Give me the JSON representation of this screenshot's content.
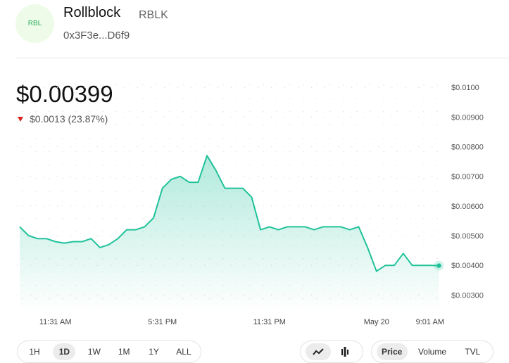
{
  "header": {
    "logo": "RBL",
    "name": "Rollblock",
    "symbol": "RBLK",
    "address": "0x3F3e...D6f9"
  },
  "price": "$0.00399",
  "change": "$0.0013 (23.87%)",
  "chart_data": {
    "type": "area",
    "categories": [
      null,
      null,
      null,
      null,
      "11:31 AM",
      null,
      null,
      null,
      null,
      null,
      null,
      null,
      null,
      null,
      null,
      null,
      "5:31 PM",
      null,
      null,
      null,
      null,
      null,
      null,
      null,
      null,
      null,
      null,
      null,
      "11:31 PM",
      null,
      null,
      null,
      null,
      null,
      null,
      null,
      null,
      null,
      null,
      null,
      "May 20",
      null,
      null,
      null,
      null,
      null,
      "9:01 AM",
      null
    ],
    "values": [
      0.0053,
      0.005,
      0.0049,
      0.0049,
      0.0048,
      0.00475,
      0.0048,
      0.0048,
      0.0049,
      0.0046,
      0.0047,
      0.0049,
      0.0052,
      0.0052,
      0.0053,
      0.0056,
      0.0066,
      0.0069,
      0.007,
      0.0068,
      0.0068,
      0.0077,
      0.0072,
      0.0066,
      0.0066,
      0.0066,
      0.0063,
      0.0052,
      0.0053,
      0.0052,
      0.0053,
      0.0053,
      0.0053,
      0.0052,
      0.0053,
      0.0053,
      0.0053,
      0.0052,
      0.0053,
      0.0046,
      0.0038,
      0.004,
      0.004,
      0.0044,
      0.004,
      0.004,
      0.004,
      0.00399
    ],
    "color": "#20c29a",
    "ylim": [
      0.0027,
      0.0101
    ],
    "yticks": [
      {
        "value": 0.003,
        "label": "$0.00300"
      },
      {
        "value": 0.004,
        "label": "$0.00400"
      },
      {
        "value": 0.005,
        "label": "$0.00500"
      },
      {
        "value": 0.006,
        "label": "$0.00600"
      },
      {
        "value": 0.007,
        "label": "$0.00700"
      },
      {
        "value": 0.008,
        "label": "$0.00800"
      },
      {
        "value": 0.009,
        "label": "$0.00900"
      },
      {
        "value": 0.01,
        "label": "$0.0100"
      }
    ],
    "grid": true
  },
  "ranges": [
    "1H",
    "1D",
    "1W",
    "1M",
    "1Y",
    "ALL"
  ],
  "tabs": [
    "Price",
    "Volume",
    "TVL"
  ]
}
